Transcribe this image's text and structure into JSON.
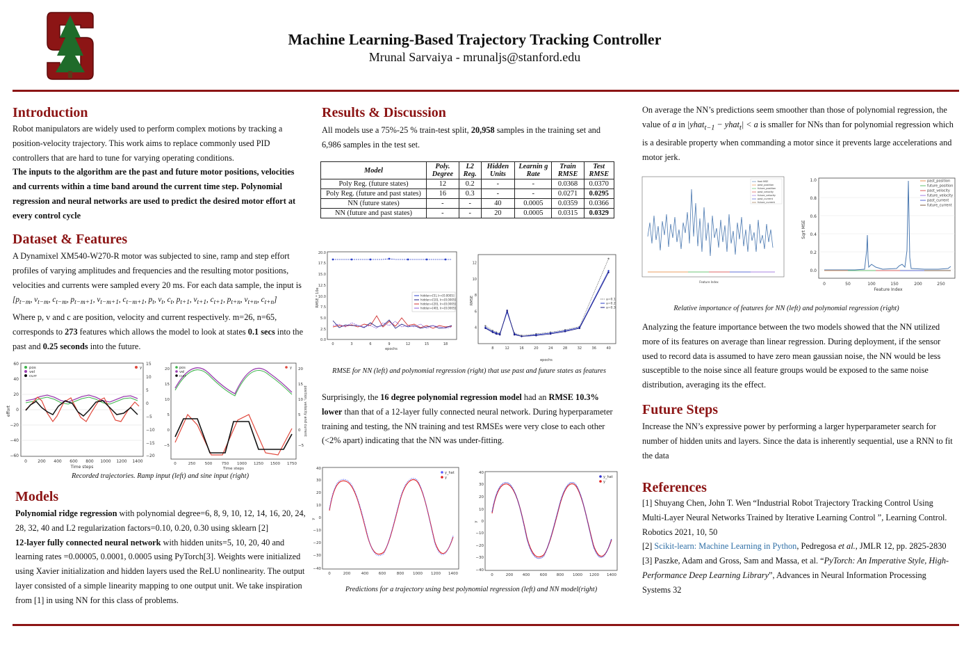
{
  "header": {
    "title": "Machine Learning-Based Trajectory Tracking Controller",
    "author": "Mrunal Sarvaiya - mrunaljs@stanford.edu"
  },
  "intro": {
    "heading": "Introduction",
    "p1": "Robot manipulators are widely used to perform complex motions by tracking a position-velocity trajectory. This work aims to replace commonly used PID controllers that are hard to tune for varying operating conditions.",
    "p2": "The inputs to the algorithm are the past and future motor positions, velocities and currents within a time band around the current time step. Polynomial regression and neural networks are used to predict the desired motor effort at every control cycle"
  },
  "dataset": {
    "heading": "Dataset & Features",
    "p1": "A Dynamixel XM540-W270-R motor was subjected to sine, ramp and step effort profiles of varying amplitudes and frequencies and the resulting motor positions, velocities and currents were sampled every 20 ms. For each data sample, the input is",
    "formula": "[p_{t−m}, v_{t−m}, c_{t−m}, p_{t−m+1}, v_{t−m+1}, c_{t−m+1}, p_t, v_t, c_t, p_{t+1}, v_{t+1}, c_{t+1}, p_{t+n}, v_{t+n}, c_{t+n}]",
    "p2a": "Where p, v and c are position, velocity and current respectively. m=26, n=65, corresponds to ",
    "p2b": "273",
    "p2c": " features which allows the model to look at states ",
    "p2d": "0.1 secs",
    "p2e": " into the past and ",
    "p2f": "0.25 seconds",
    "p2g": " into the future.",
    "caption": "Recorded trajectories. Ramp input (left) and sine input (right)"
  },
  "models": {
    "heading": "Models",
    "p1a": "Polynomial ridge regression",
    "p1b": " with polynomial degree=6, 8, 9, 10, 12, 14, 16, 20, 24, 28, 32, 40 and L2 regularization factors=0.10, 0.20, 0.30 using sklearn [2]",
    "p2a": "12-layer fully connected neural network",
    "p2b": " with hidden units=5, 10, 20, 40 and learning rates =0.00005, 0.0001, 0.0005 using PyTorch[3]. Weights were initialized using Xavier initialization and hidden layers used the ReLU nonlinearity. The output layer consisted of a simple linearity mapping to one output unit. We take inspiration from [1] in using NN for this class of problems."
  },
  "results": {
    "heading": "Results & Discussion",
    "p1a": "All models use a 75%-25 % train-test split, ",
    "p1b": "20,958",
    "p1c": " samples in the training set and 6,986 samples in the test set.",
    "table": {
      "headers": [
        "Model",
        "Poly. Degree",
        "L2 Reg.",
        "Hidden Units",
        "Learnin g Rate",
        "Train RMSE",
        "Test RMSE"
      ],
      "rows": [
        [
          "Poly Reg. (future states)",
          "12",
          "0.2",
          "-",
          "-",
          "0.0368",
          "0.0370"
        ],
        [
          "Poly Reg. (future and past states)",
          "16",
          "0.3",
          "-",
          "-",
          "0.0271",
          "0.0295"
        ],
        [
          "NN (future states)",
          "-",
          "-",
          "40",
          "0.0005",
          "0.0359",
          "0.0366"
        ],
        [
          "NN (future and past states)",
          "-",
          "-",
          "20",
          "0.0005",
          "0.0315",
          "0.0329"
        ]
      ]
    },
    "rmse_caption": "RMSE for NN (left) and polynomial regression (right) that use past and future states as features",
    "p2a": "Surprisingly, the ",
    "p2b": "16 degree polynomial regression model",
    "p2c": " had an ",
    "p2d": "RMSE 10.3% lower",
    "p2e": " than that of a 12-layer fully connected neural network. During hyperparameter training and testing, the NN training and test RMSEs were very close to each other (<2% apart) indicating that the NN was under-fitting.",
    "pred_caption": "Predictions for a trajectory using best polynomial regression (left) and NN model(right)"
  },
  "right": {
    "p1a": "On average the NN’s predictions seem smoother than those of polynomial regression, the value of ",
    "p1b": "a",
    "p1c": " in ",
    "p1d": "|yhat_{t−1} − yhat_t| < a",
    "p1e": " is smaller for NNs than for polynomial regression which is a desirable property when commanding a motor since it prevents large accelerations and motor jerk.",
    "importance_caption": "Relative importance of features for NN (left) and polynomial regression (right)",
    "p2": "Analyzing the feature importance between the two models showed that the NN utilized more of its features on average than linear regression. During deployment, if the sensor used to record data is assumed to have zero mean gaussian noise, the NN would be less susceptible to the noise since all feature groups would be exposed to the same noise distribution, averaging its the effect.",
    "future_heading": "Future Steps",
    "future_p": "Increase the NN’s expressive power by performing a larger hyperparameter search for number of hidden units and layers. Since the data is inherently sequential, use a RNN to fit the data",
    "refs_heading": "References",
    "ref1": "[1] Shuyang Chen, John T. Wen “Industrial Robot Trajectory Tracking Control Using Multi-Layer Neural Networks Trained by Iterative Learning Control ”, Learning Control. Robotics 2021, 10, 50",
    "ref2a": "[2] ",
    "ref2b": "Scikit-learn: Machine Learning in Python",
    "ref2c": ", Pedregosa ",
    "ref2d": "et al.",
    "ref2e": ", JMLR 12, pp. 2825-2830",
    "ref3a": "[3] Paszke, Adam and Gross, Sam and Massa, et al. “",
    "ref3b": "PyTorch: An Imperative Style, High-Performance Deep Learning Library",
    "ref3c": "”, Advances in Neural Information Processing Systems 32"
  },
  "chart_data": [
    {
      "type": "line",
      "name_in_image": "ramp trajectory",
      "xlabel": "Time steps",
      "ylabel": "effort",
      "ylabel_right": "",
      "xlim": [
        0,
        1400
      ],
      "ylim": [
        -60,
        60
      ],
      "ylim_right": [
        -20,
        15
      ],
      "legend": [
        "pos",
        "vel",
        "curr",
        "y"
      ],
      "xticks": [
        0,
        200,
        400,
        600,
        800,
        1000,
        1200,
        1400
      ],
      "yticks": [
        -60,
        -40,
        -20,
        0,
        20,
        40,
        60
      ],
      "yticks_right": [
        -20,
        -15,
        -10,
        -5,
        0,
        5,
        10,
        15
      ]
    },
    {
      "type": "line",
      "name_in_image": "sine trajectory",
      "xlabel": "Time steps",
      "ylabel": "effort",
      "ylabel_right": "position, velocity and current",
      "xlim": [
        0,
        1800
      ],
      "ylim": [
        -25,
        25
      ],
      "legend": [
        "pos",
        "vel",
        "curr",
        "y"
      ],
      "xticks": [
        0,
        250,
        500,
        750,
        1000,
        1250,
        1500,
        1750
      ],
      "yticks": [
        -20,
        -15,
        -10,
        -5,
        0,
        5,
        10,
        15,
        20
      ]
    },
    {
      "type": "line",
      "name_in_image": "NN RMSE vs epochs",
      "xlabel": "epochs",
      "ylabel": "RMSE * 10e",
      "xlim": [
        0,
        20
      ],
      "ylim": [
        0,
        20
      ],
      "legend": [
        "hidden=[5], lr=[0.0005]",
        "hidden=[10], lr=[0.0005]",
        "hidden=[20], lr=[0.0005]",
        "hidden=[40], lr=[0.0005]"
      ],
      "xticks": [
        0,
        3,
        6,
        9,
        12,
        15,
        18
      ],
      "yticks": [
        0,
        2.5,
        5,
        7.5,
        10,
        12.5,
        15,
        17.5,
        20
      ]
    },
    {
      "type": "line",
      "name_in_image": "Poly RMSE vs degree",
      "xlabel": "epochs",
      "ylabel": "RMSE",
      "xlim": [
        4,
        42
      ],
      "ylim": [
        2,
        13
      ],
      "legend": [
        "a=0.1",
        "a=0.2",
        "a=0.3"
      ],
      "x": [
        6,
        8,
        9,
        10,
        12,
        14,
        16,
        20,
        24,
        28,
        32,
        40
      ],
      "series": [
        {
          "name": "a=0.1",
          "values": [
            4.2,
            3.6,
            3.4,
            3.3,
            6.0,
            3.3,
            3.0,
            3.2,
            3.4,
            3.7,
            4.1,
            12.5
          ]
        },
        {
          "name": "a=0.2",
          "values": [
            4.0,
            3.5,
            3.3,
            3.2,
            5.9,
            3.2,
            2.9,
            3.1,
            3.3,
            3.6,
            4.0,
            11.0
          ]
        },
        {
          "name": "a=0.3",
          "values": [
            3.9,
            3.4,
            3.2,
            3.1,
            6.1,
            3.1,
            2.9,
            3.0,
            3.2,
            3.5,
            3.9,
            10.8
          ]
        }
      ],
      "xticks": [
        8,
        12,
        16,
        20,
        24,
        28,
        32,
        36,
        40
      ],
      "yticks": [
        4,
        6,
        8,
        10,
        12
      ]
    },
    {
      "type": "scatter",
      "name_in_image": "Poly predictions",
      "xlabel": "",
      "ylabel": "y",
      "xlim": [
        0,
        1400
      ],
      "ylim": [
        -40,
        40
      ],
      "legend": [
        "y_hat",
        "y"
      ],
      "xticks": [
        0,
        200,
        400,
        600,
        800,
        1000,
        1200,
        1400
      ],
      "yticks": [
        -40,
        -30,
        -20,
        -10,
        0,
        10,
        20,
        30,
        40
      ]
    },
    {
      "type": "scatter",
      "name_in_image": "NN predictions",
      "xlabel": "",
      "ylabel": "y",
      "xlim": [
        0,
        1400
      ],
      "ylim": [
        -40,
        40
      ],
      "legend": [
        "y_hat",
        "y"
      ],
      "xticks": [
        0,
        200,
        400,
        600,
        800,
        1000,
        1200,
        1400
      ],
      "yticks": [
        -40,
        -30,
        -20,
        -10,
        0,
        10,
        20,
        30,
        40
      ]
    },
    {
      "type": "line",
      "name_in_image": "NN feature importance",
      "xlabel": "Feature Index",
      "ylabel": "Sqrt MSE",
      "xlim": [
        0,
        273
      ],
      "legend": [
        "past_position",
        "future_position",
        "past_velocity",
        "future_velocity",
        "past_current",
        "future_current"
      ],
      "xticks": [
        0,
        50,
        100,
        150,
        200,
        250
      ]
    },
    {
      "type": "line",
      "name_in_image": "Poly feature importance",
      "xlabel": "Feature Index",
      "ylabel": "Sqrt MSE",
      "xlim": [
        0,
        273
      ],
      "ylim": [
        0,
        1.0
      ],
      "legend": [
        "past_position",
        "future_position",
        "past_velocity",
        "future_velocity",
        "past_current",
        "future_current"
      ],
      "xticks": [
        0,
        50,
        100,
        150,
        200,
        250
      ],
      "yticks": [
        0.0,
        0.2,
        0.4,
        0.6,
        0.8,
        1.0
      ]
    }
  ]
}
